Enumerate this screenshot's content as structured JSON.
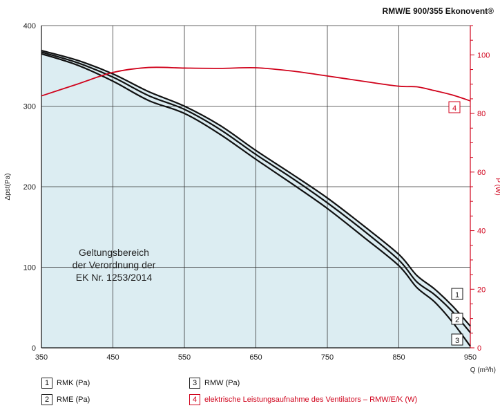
{
  "chart_data": {
    "type": "line",
    "title": "RMW/E 900/355 Ekonovent®",
    "xlabel": "Q (m³/h)",
    "ylabel": "Δpst(Pa)",
    "ylabel_right": "P (W)",
    "xlim": [
      350,
      950
    ],
    "ylim": [
      0,
      400
    ],
    "ylim_right": [
      0,
      110
    ],
    "x_ticks": [
      350,
      450,
      550,
      650,
      750,
      850,
      950
    ],
    "y_ticks": [
      0,
      100,
      200,
      300,
      400
    ],
    "y_ticks_right": [
      0,
      20,
      40,
      60,
      80,
      100
    ],
    "grid": true,
    "shaded_region_label": "Geltungsbereich\nder Verordnung der\nEK Nr. 1253/2014",
    "series": [
      {
        "name": "RMK (Pa)",
        "marker": "1",
        "axis": "left",
        "x": [
          350,
          400,
          450,
          500,
          550,
          600,
          650,
          700,
          750,
          800,
          850,
          875,
          900,
          925,
          950
        ],
        "y": [
          369,
          357,
          340,
          318,
          300,
          276,
          245,
          216,
          186,
          152,
          116,
          90,
          73,
          52,
          27
        ]
      },
      {
        "name": "RME (Pa)",
        "marker": "2",
        "axis": "left",
        "x": [
          350,
          400,
          450,
          500,
          550,
          600,
          650,
          700,
          750,
          800,
          850,
          875,
          900,
          925,
          950
        ],
        "y": [
          367,
          354,
          336,
          313,
          296,
          271,
          240,
          211,
          180,
          146,
          109,
          82,
          66,
          45,
          19
        ]
      },
      {
        "name": "RMW (Pa)",
        "marker": "3",
        "axis": "left",
        "x": [
          350,
          400,
          450,
          500,
          550,
          600,
          650,
          700,
          750,
          800,
          850,
          875,
          900,
          925,
          950
        ],
        "y": [
          365,
          351,
          331,
          307,
          291,
          265,
          234,
          204,
          173,
          138,
          102,
          75,
          57,
          32,
          2
        ]
      },
      {
        "name": "elektrische Leistungsaufnahme des Ventilators – RMW/E/K (W)",
        "marker": "4",
        "axis": "right",
        "color": "#d0021b",
        "x": [
          350,
          400,
          450,
          500,
          550,
          600,
          650,
          700,
          750,
          800,
          850,
          875,
          900,
          925,
          950
        ],
        "y": [
          86,
          90,
          94,
          95.7,
          95.5,
          95.4,
          95.6,
          94.5,
          92.8,
          91,
          89.3,
          89.1,
          87.8,
          86.3,
          84.3
        ]
      }
    ],
    "colors": {
      "curves": "#111111",
      "power": "#d0021b",
      "fill": "#dcedf2",
      "grid": "#333333"
    }
  },
  "legend": [
    {
      "marker": "1",
      "label": "RMK (Pa)"
    },
    {
      "marker": "2",
      "label": "RME (Pa)"
    },
    {
      "marker": "3",
      "label": "RMW (Pa)"
    },
    {
      "marker": "4",
      "label": "elektrische Leistungsaufnahme des Ventilators – RMW/E/K (W)"
    }
  ]
}
